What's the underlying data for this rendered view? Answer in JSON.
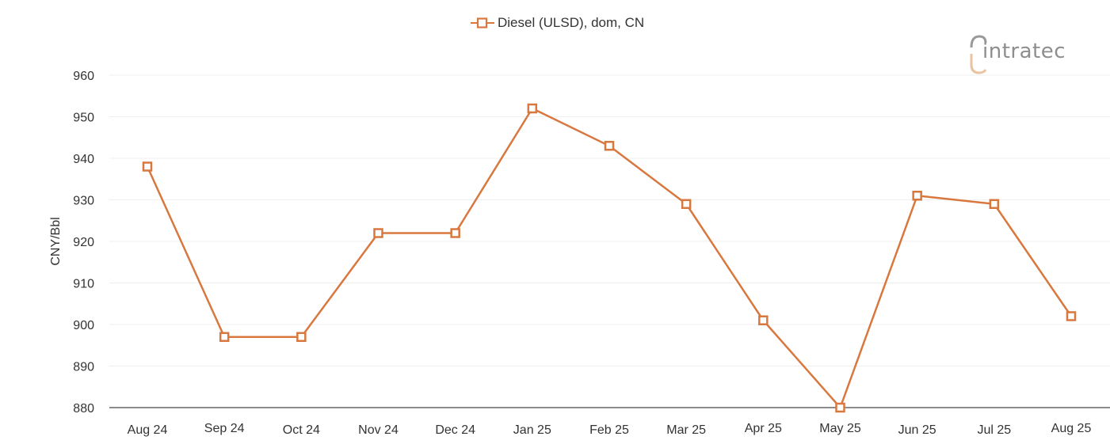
{
  "legend": {
    "label": "Diesel (ULSD), dom, CN",
    "color": "#D8783F"
  },
  "logo": {
    "text": "intratec",
    "accent_color": "#E9C3A0",
    "text_color": "#8E8E8E"
  },
  "axes": {
    "ylabel": "CNY/Bbl",
    "yticks": [
      "960",
      "950",
      "940",
      "930",
      "920",
      "910",
      "900",
      "890",
      "880"
    ],
    "xticks": [
      "Aug 24",
      "Sep 24",
      "Oct 24",
      "Nov 24",
      "Dec 24",
      "Jan 25",
      "Feb 25",
      "Mar 25",
      "Apr 25",
      "May 25",
      "Jun 25",
      "Jul 25",
      "Aug 25"
    ]
  },
  "chart_data": {
    "type": "line",
    "title": "",
    "xlabel": "",
    "ylabel": "CNY/Bbl",
    "categories": [
      "Aug 24",
      "Sep 24",
      "Oct 24",
      "Nov 24",
      "Dec 24",
      "Jan 25",
      "Feb 25",
      "Mar 25",
      "Apr 25",
      "May 25",
      "Jun 25",
      "Jul 25",
      "Aug 25"
    ],
    "series": [
      {
        "name": "Diesel (ULSD), dom, CN",
        "color": "#D8783F",
        "marker": "hollow-square",
        "values": [
          938,
          897,
          897,
          922,
          922,
          952,
          943,
          929,
          901,
          880,
          931,
          929,
          902
        ]
      }
    ],
    "ylim": [
      880,
      960
    ],
    "ytick_step": 10,
    "grid": "horizontal",
    "legend_position": "top-center"
  }
}
